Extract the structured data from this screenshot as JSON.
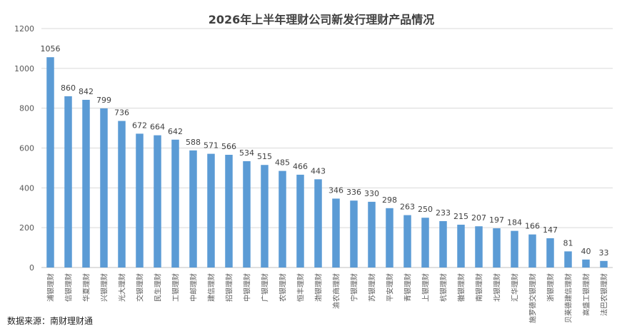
{
  "source": "数据来源：南财理财通",
  "colors": {
    "bar": "#5b9bd5",
    "grid": "#d9d9d9",
    "axis": "#bfbfbf"
  },
  "chart_data": {
    "type": "bar",
    "title": "2026年上半年理财公司新发行理财产品情况",
    "xlabel": "",
    "ylabel": "",
    "ylim": [
      0,
      1200
    ],
    "yticks": [
      0,
      200,
      400,
      600,
      800,
      1000,
      1200
    ],
    "grid": true,
    "legend": "none",
    "categories": [
      "浦银理财",
      "信银理财",
      "华夏理财",
      "兴银理财",
      "光大理财",
      "交银理财",
      "民生理财",
      "工银理财",
      "中邮理财",
      "建信理财",
      "招银理财",
      "中银理财",
      "广银理财",
      "农银理财",
      "恒丰理财",
      "渤银理财",
      "渝农商理财",
      "宁银理财",
      "苏银理财",
      "平安理财",
      "青银理财",
      "上银理财",
      "杭银理财",
      "徽银理财",
      "南银理财",
      "北银理财",
      "汇华理财",
      "施罗德交银理财",
      "浙银理财",
      "贝莱德建信理财",
      "高盛工银理财",
      "法巴农银理财"
    ],
    "values": [
      1056,
      860,
      842,
      799,
      736,
      672,
      664,
      642,
      588,
      571,
      566,
      534,
      515,
      485,
      466,
      443,
      346,
      336,
      330,
      298,
      263,
      250,
      233,
      215,
      207,
      197,
      184,
      166,
      147,
      81,
      40,
      33
    ]
  }
}
